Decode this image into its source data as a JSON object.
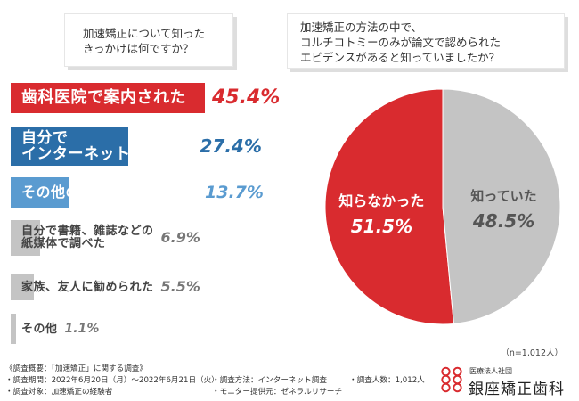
{
  "question_left": "加速矯正について知った\nきっかけは何ですか？",
  "question_right": "加速矯正の方法の中で、\nコルチコトミーのみが論文で認められた\nエビデンスがあると知っていましたか？",
  "colors": {
    "red": "#d92b2f",
    "blue_dark": "#2b6ea8",
    "blue_light": "#5a9bd0",
    "gray": "#c4c4c4",
    "white": "#ffffff"
  },
  "chart_data": [
    {
      "type": "bar",
      "orientation": "horizontal",
      "title": "加速矯正について知ったきっかけは何ですか？",
      "categories": [
        "歯科医院で案内された",
        "自分でインターネットで調べた",
        "その他の医院で案内された",
        "自分で書籍、雑誌などの紙媒体で調べた",
        "家族、友人に勧められた",
        "その他"
      ],
      "display_labels": [
        "歯科医院で案内された",
        "自分で\nインターネットで調べた",
        "その他の医院で案内された",
        "自分で書籍、雑誌などの\n紙媒体で調べた",
        "家族、友人に勧められた",
        "その他"
      ],
      "values": [
        45.4,
        27.4,
        13.7,
        6.9,
        5.5,
        1.1
      ],
      "value_labels": [
        "45.4%",
        "27.4%",
        "13.7%",
        "6.9%",
        "5.5%",
        "1.1%"
      ],
      "unit": "%"
    },
    {
      "type": "pie",
      "title": "加速矯正の方法の中で、コルチコトミーのみが論文で認められたエビデンスがあると知っていましたか？",
      "labels": [
        "知らなかった",
        "知っていた"
      ],
      "values": [
        51.5,
        48.5
      ],
      "value_labels": [
        "51.5%",
        "48.5%"
      ],
      "n_label": "（n=1,012人）"
    }
  ],
  "footer": {
    "overview": "《調査概要：「加速矯正」に関する調査》",
    "period": "・調査期間：2022年6月20日（月）〜2022年6月21日（火）",
    "target": "・調査対象：加速矯正の経験者",
    "method": "・調査方法：インターネット調査",
    "provider": "・モニター提供元：ゼネラルリサーチ",
    "count": "・調査人数：1,012人"
  },
  "clinic": {
    "sub": "医療法人社団",
    "name": "銀座矯正歯科"
  }
}
